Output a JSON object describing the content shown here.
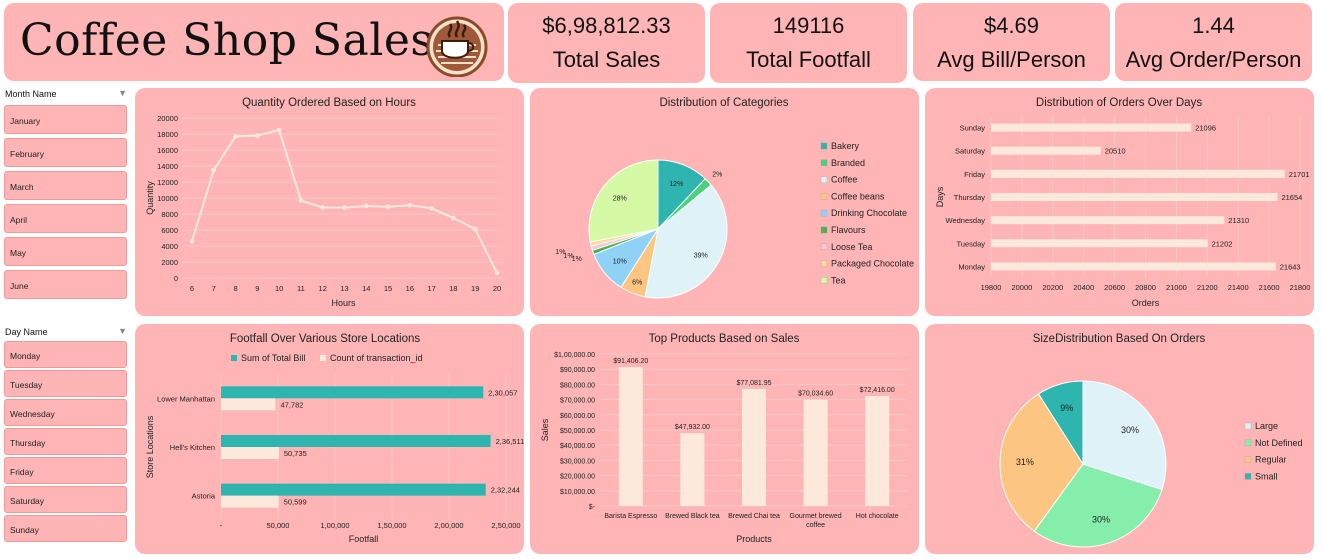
{
  "header": {
    "title": "Coffee Shop Sales"
  },
  "kpis": [
    {
      "value": "$6,98,812.33",
      "label": "Total Sales"
    },
    {
      "value": "149116",
      "label": "Total Footfall"
    },
    {
      "value": "$4.69",
      "label": "Avg Bill/Person"
    },
    {
      "value": "1.44",
      "label": "Avg Order/Person"
    }
  ],
  "month_slicer": {
    "header": "Month Name",
    "items": [
      "January",
      "February",
      "March",
      "April",
      "May",
      "June"
    ]
  },
  "day_slicer": {
    "header": "Day Name",
    "items": [
      "Monday",
      "Tuesday",
      "Wednesday",
      "Thursday",
      "Friday",
      "Saturday",
      "Sunday"
    ]
  },
  "colors": {
    "card": "#ffb5b5",
    "line": "#fde8dc",
    "bar_light": "#fde8dc",
    "teal": "#2fb5b0"
  },
  "chart_data": [
    {
      "id": "hours",
      "type": "line",
      "title": "Quantity Ordered Based on Hours",
      "xlabel": "Hours",
      "ylabel": "Quantity",
      "x": [
        6,
        7,
        8,
        9,
        10,
        11,
        12,
        13,
        14,
        15,
        16,
        17,
        18,
        19,
        20
      ],
      "y_ticks": [
        "0",
        "2000",
        "4000",
        "6000",
        "8000",
        "10000",
        "12000",
        "14000",
        "16000",
        "18000",
        "20000"
      ],
      "ylim": [
        0,
        20000
      ],
      "series": [
        {
          "values": [
            4600,
            13500,
            17700,
            17800,
            18500,
            9700,
            8800,
            8800,
            9000,
            8900,
            9100,
            8700,
            7500,
            6100,
            650
          ]
        }
      ]
    },
    {
      "id": "categories",
      "type": "pie",
      "title": "Distribution of Categories",
      "slices": [
        {
          "name": "Bakery",
          "value": 12,
          "label": "12%",
          "color": "#2fb5b0"
        },
        {
          "name": "Branded",
          "value": 2,
          "label": "2%",
          "color": "#49d17e"
        },
        {
          "name": "Coffee",
          "value": 39,
          "label": "39%",
          "color": "#dff2f8"
        },
        {
          "name": "Coffee beans",
          "value": 6,
          "label": "6%",
          "color": "#fcc582"
        },
        {
          "name": "Drinking Chocolate",
          "value": 10,
          "label": "10%",
          "color": "#8fd2f5"
        },
        {
          "name": "Flavours",
          "value": 1,
          "label": "1%",
          "color": "#4caf50"
        },
        {
          "name": "Loose Tea",
          "value": 1,
          "label": "1%",
          "color": "#f9c5d6"
        },
        {
          "name": "Packaged Chocolate",
          "value": 1,
          "label": "1%",
          "color": "#ffd89a"
        },
        {
          "name": "Tea",
          "value": 28,
          "label": "28%",
          "color": "#d6f9a5"
        }
      ]
    },
    {
      "id": "days",
      "type": "bar",
      "title": "Distribution of Orders Over Days",
      "xlabel": "Orders",
      "ylabel": "Days",
      "categories": [
        "Sunday",
        "Saturday",
        "Friday",
        "Thursday",
        "Wednesday",
        "Tuesday",
        "Monday"
      ],
      "values": [
        21096,
        20510,
        21701,
        21654,
        21310,
        21202,
        21643
      ],
      "x_ticks": [
        "19800",
        "20000",
        "20200",
        "20400",
        "20600",
        "20800",
        "21000",
        "21200",
        "21400",
        "21600",
        "21800"
      ],
      "xlim": [
        19800,
        21800
      ]
    },
    {
      "id": "footfall",
      "type": "bar",
      "title": "Footfall Over Various Store Locations",
      "xlabel": "Footfall",
      "ylabel": "Store Locations",
      "categories": [
        "Lower Manhattan",
        "Hell's Kitchen",
        "Astoria"
      ],
      "series": [
        {
          "name": "Sum of Total Bill",
          "values": [
            230057,
            236511,
            232244
          ],
          "labels": [
            "2,30,057",
            "2,36,511",
            "2,32,244"
          ]
        },
        {
          "name": "Count of transaction_id",
          "values": [
            47782,
            50735,
            50599
          ],
          "labels": [
            "47,782",
            "50,735",
            "50,599"
          ]
        }
      ],
      "x_ticks": [
        "-",
        "50,000",
        "1,00,000",
        "1,50,000",
        "2,00,000",
        "2,50,000"
      ],
      "xlim": [
        0,
        250000
      ]
    },
    {
      "id": "products",
      "type": "bar",
      "title": "Top Products Based on Sales",
      "xlabel": "Products",
      "ylabel": "Sales",
      "categories": [
        "Barista Espresso",
        "Brewed Black tea",
        "Brewed Chai tea",
        "Gourmet brewed coffee",
        "Hot chocolate"
      ],
      "values": [
        91406.2,
        47932.0,
        77081.95,
        70034.6,
        72416.0
      ],
      "labels": [
        "$91,406.20",
        "$47,932.00",
        "$77,081.95",
        "$70,034.60",
        "$72,416.00"
      ],
      "y_ticks": [
        "$-",
        "$10,000.00",
        "$20,000.00",
        "$30,000.00",
        "$40,000.00",
        "$50,000.00",
        "$60,000.00",
        "$70,000.00",
        "$80,000.00",
        "$90,000.00",
        "$1,00,000.00"
      ],
      "ylim": [
        0,
        100000
      ]
    },
    {
      "id": "sizes",
      "type": "pie",
      "title": "SizeDistribution Based On Orders",
      "slices": [
        {
          "name": "Large",
          "value": 30,
          "label": "30%",
          "color": "#dff2f8"
        },
        {
          "name": "Not Defined",
          "value": 30,
          "label": "30%",
          "color": "#85eeab"
        },
        {
          "name": "Regular",
          "value": 31,
          "label": "31%",
          "color": "#fcc582"
        },
        {
          "name": "Small",
          "value": 9,
          "label": "9%",
          "color": "#2fb5b0"
        }
      ]
    }
  ]
}
